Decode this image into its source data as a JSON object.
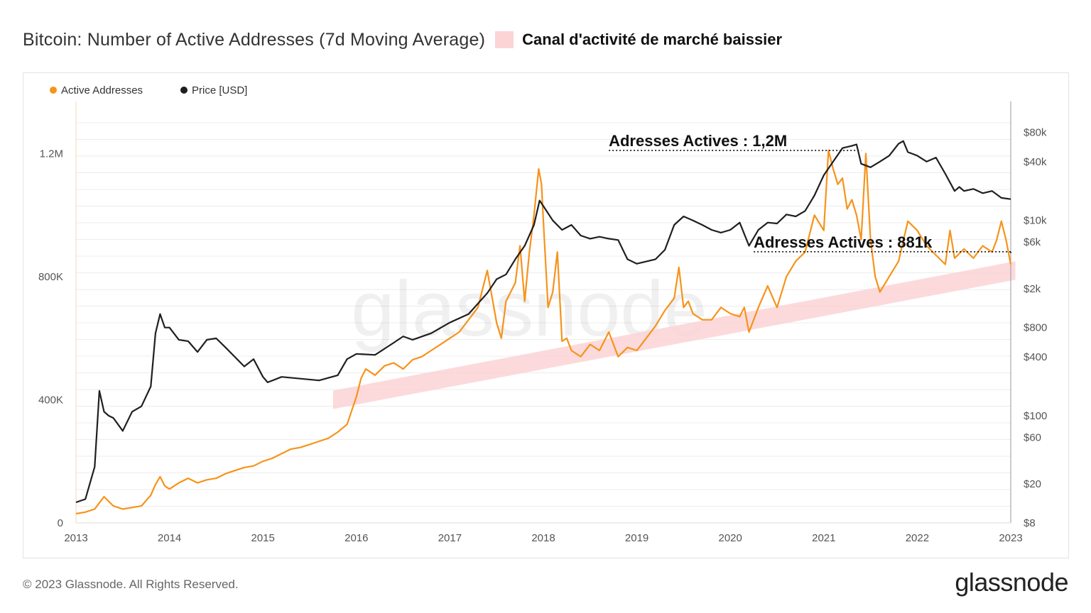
{
  "header": {
    "title": "Bitcoin: Number of Active Addresses (7d Moving Average)",
    "legend_label": "Canal d'activité de marché baissier"
  },
  "footer": {
    "copyright": "© 2023 Glassnode. All Rights Reserved.",
    "brand": "glassnode"
  },
  "watermark": "glassnode",
  "colors": {
    "active": "#f7931a",
    "price": "#1f1f1f",
    "channel": "#fcd4d6",
    "grid": "#ececec",
    "axis": "#555555"
  },
  "chart_data": {
    "type": "line",
    "title": "Bitcoin: Number of Active Addresses (7d Moving Average)",
    "legend": [
      "Active Addresses",
      "Price [USD]"
    ],
    "legend_position": "top-left",
    "x_ticks": [
      "2013",
      "2014",
      "2015",
      "2016",
      "2017",
      "2018",
      "2019",
      "2020",
      "2021",
      "2022",
      "2023"
    ],
    "xlim": [
      2013.0,
      2023.0
    ],
    "y_left": {
      "ticks": [
        {
          "label": "0",
          "value": 0
        },
        {
          "label": "400K",
          "value": 400000
        },
        {
          "label": "800K",
          "value": 800000
        },
        {
          "label": "1.2M",
          "value": 1200000
        }
      ],
      "ylim": [
        0,
        1300000
      ]
    },
    "y_right": {
      "scale": "log",
      "ticks": [
        {
          "label": "$8",
          "value": 8
        },
        {
          "label": "$20",
          "value": 20
        },
        {
          "label": "$60",
          "value": 60
        },
        {
          "label": "$100",
          "value": 100
        },
        {
          "label": "$400",
          "value": 400
        },
        {
          "label": "$800",
          "value": 800
        },
        {
          "label": "$2k",
          "value": 2000
        },
        {
          "label": "$6k",
          "value": 6000
        },
        {
          "label": "$10k",
          "value": 10000
        },
        {
          "label": "$40k",
          "value": 40000
        },
        {
          "label": "$80k",
          "value": 80000
        }
      ],
      "ylim": [
        8,
        100000
      ]
    },
    "series": [
      {
        "name": "Active Addresses",
        "axis": "left",
        "x": [
          2013.0,
          2013.1,
          2013.2,
          2013.3,
          2013.4,
          2013.5,
          2013.6,
          2013.7,
          2013.8,
          2013.85,
          2013.9,
          2013.95,
          2014.0,
          2014.1,
          2014.2,
          2014.3,
          2014.4,
          2014.5,
          2014.6,
          2014.7,
          2014.8,
          2014.9,
          2015.0,
          2015.1,
          2015.2,
          2015.3,
          2015.4,
          2015.5,
          2015.6,
          2015.7,
          2015.8,
          2015.9,
          2016.0,
          2016.05,
          2016.1,
          2016.2,
          2016.3,
          2016.4,
          2016.5,
          2016.6,
          2016.7,
          2016.8,
          2016.9,
          2017.0,
          2017.1,
          2017.2,
          2017.3,
          2017.4,
          2017.5,
          2017.55,
          2017.6,
          2017.7,
          2017.75,
          2017.8,
          2017.85,
          2017.9,
          2017.95,
          2017.98,
          2018.0,
          2018.05,
          2018.1,
          2018.15,
          2018.2,
          2018.25,
          2018.3,
          2018.4,
          2018.5,
          2018.6,
          2018.7,
          2018.8,
          2018.9,
          2019.0,
          2019.1,
          2019.2,
          2019.3,
          2019.4,
          2019.45,
          2019.5,
          2019.55,
          2019.6,
          2019.7,
          2019.8,
          2019.9,
          2020.0,
          2020.1,
          2020.15,
          2020.2,
          2020.3,
          2020.4,
          2020.5,
          2020.6,
          2020.7,
          2020.8,
          2020.9,
          2021.0,
          2021.05,
          2021.1,
          2021.15,
          2021.2,
          2021.25,
          2021.3,
          2021.35,
          2021.4,
          2021.45,
          2021.5,
          2021.55,
          2021.6,
          2021.7,
          2021.8,
          2021.9,
          2022.0,
          2022.1,
          2022.2,
          2022.3,
          2022.35,
          2022.4,
          2022.5,
          2022.6,
          2022.7,
          2022.8,
          2022.85,
          2022.9,
          2022.95,
          2023.0
        ],
        "values": [
          30000,
          35000,
          45000,
          85000,
          55000,
          45000,
          50000,
          55000,
          90000,
          125000,
          150000,
          120000,
          110000,
          130000,
          145000,
          130000,
          140000,
          145000,
          160000,
          170000,
          180000,
          185000,
          200000,
          210000,
          225000,
          240000,
          245000,
          255000,
          265000,
          275000,
          295000,
          320000,
          410000,
          470000,
          500000,
          480000,
          510000,
          520000,
          500000,
          530000,
          540000,
          560000,
          580000,
          600000,
          620000,
          660000,
          700000,
          820000,
          650000,
          600000,
          720000,
          780000,
          900000,
          720000,
          880000,
          1000000,
          1150000,
          1100000,
          980000,
          700000,
          750000,
          880000,
          590000,
          600000,
          560000,
          540000,
          580000,
          560000,
          620000,
          540000,
          570000,
          560000,
          600000,
          640000,
          690000,
          730000,
          830000,
          700000,
          720000,
          680000,
          660000,
          660000,
          700000,
          680000,
          670000,
          700000,
          620000,
          700000,
          770000,
          700000,
          800000,
          850000,
          880000,
          1000000,
          950000,
          1210000,
          1150000,
          1100000,
          1120000,
          1020000,
          1050000,
          1000000,
          920000,
          1200000,
          920000,
          800000,
          750000,
          800000,
          850000,
          980000,
          950000,
          900000,
          870000,
          840000,
          950000,
          860000,
          890000,
          860000,
          900000,
          880000,
          920000,
          980000,
          920000,
          840000
        ]
      },
      {
        "name": "Price [USD]",
        "axis": "right",
        "x": [
          2013.0,
          2013.1,
          2013.2,
          2013.25,
          2013.3,
          2013.35,
          2013.4,
          2013.5,
          2013.6,
          2013.7,
          2013.8,
          2013.85,
          2013.9,
          2013.95,
          2014.0,
          2014.1,
          2014.2,
          2014.3,
          2014.4,
          2014.5,
          2014.6,
          2014.7,
          2014.8,
          2014.9,
          2015.0,
          2015.05,
          2015.2,
          2015.4,
          2015.6,
          2015.8,
          2015.9,
          2016.0,
          2016.2,
          2016.4,
          2016.5,
          2016.6,
          2016.8,
          2017.0,
          2017.2,
          2017.4,
          2017.5,
          2017.6,
          2017.7,
          2017.8,
          2017.9,
          2017.96,
          2018.0,
          2018.1,
          2018.2,
          2018.3,
          2018.4,
          2018.5,
          2018.6,
          2018.7,
          2018.8,
          2018.9,
          2019.0,
          2019.2,
          2019.3,
          2019.4,
          2019.5,
          2019.6,
          2019.7,
          2019.8,
          2019.9,
          2020.0,
          2020.1,
          2020.2,
          2020.3,
          2020.4,
          2020.5,
          2020.6,
          2020.7,
          2020.8,
          2020.9,
          2021.0,
          2021.1,
          2021.2,
          2021.3,
          2021.35,
          2021.4,
          2021.5,
          2021.6,
          2021.7,
          2021.8,
          2021.85,
          2021.9,
          2022.0,
          2022.1,
          2022.2,
          2022.3,
          2022.4,
          2022.45,
          2022.5,
          2022.6,
          2022.7,
          2022.8,
          2022.9,
          2023.0
        ],
        "values": [
          13,
          14,
          30,
          180,
          110,
          100,
          95,
          70,
          110,
          125,
          200,
          700,
          1100,
          800,
          800,
          600,
          580,
          450,
          600,
          620,
          500,
          400,
          320,
          380,
          250,
          220,
          250,
          240,
          230,
          260,
          380,
          430,
          420,
          560,
          650,
          600,
          700,
          900,
          1100,
          1800,
          2500,
          2800,
          4000,
          5500,
          9000,
          16000,
          14000,
          10000,
          8000,
          9000,
          7000,
          6500,
          6800,
          6500,
          6300,
          4000,
          3600,
          4000,
          5000,
          9000,
          11000,
          10000,
          9000,
          8000,
          7500,
          8000,
          9500,
          5500,
          8000,
          9500,
          9300,
          11500,
          11000,
          12500,
          18000,
          29000,
          40000,
          55000,
          58000,
          60000,
          38000,
          35000,
          40000,
          46000,
          61000,
          65000,
          50000,
          46000,
          40000,
          44000,
          30000,
          20000,
          22000,
          20000,
          21000,
          19000,
          20000,
          17000,
          16500
        ]
      }
    ],
    "channel": {
      "name": "Canal d'activité de marché baissier",
      "lower": [
        [
          2015.75,
          370000
        ],
        [
          2023.05,
          790000
        ]
      ],
      "upper": [
        [
          2015.75,
          430000
        ],
        [
          2023.05,
          850000
        ]
      ]
    },
    "annotations": [
      {
        "text": "Adresses Actives : 1,2M",
        "x_from": 2018.7,
        "x_to": 2021.4,
        "value": 1210000
      },
      {
        "text": "Adresses Actives : 881k",
        "x_from": 2020.25,
        "x_to": 2023.0,
        "value": 881000
      }
    ]
  }
}
